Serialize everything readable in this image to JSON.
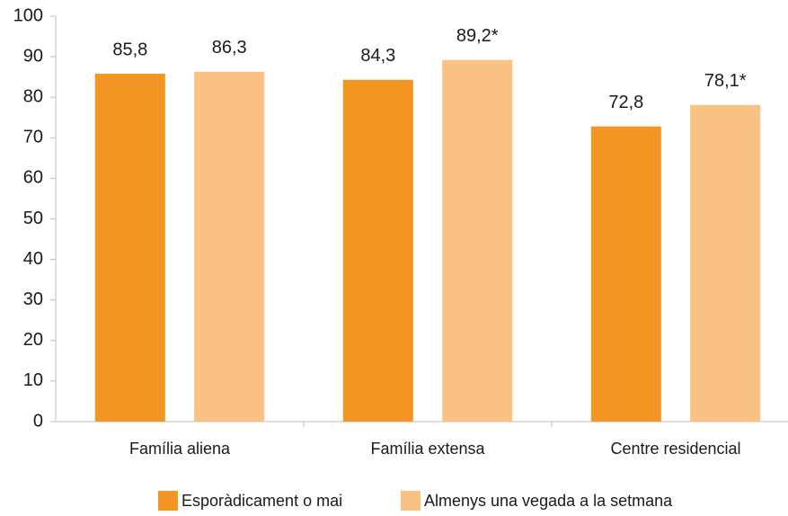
{
  "chart_data": {
    "type": "bar",
    "categories": [
      "Família aliena",
      "Família extensa",
      "Centre residencial"
    ],
    "series": [
      {
        "name": "Esporàdicament o mai",
        "color": "#f39423",
        "values": [
          85.8,
          84.3,
          72.8
        ],
        "value_labels": [
          "85,8",
          "84,3",
          "72,8"
        ]
      },
      {
        "name": "Almenys una vegada a la setmana",
        "color": "#f9c283",
        "values": [
          86.3,
          89.2,
          78.1
        ],
        "value_labels": [
          "86,3",
          "89,2*",
          "78,1*"
        ]
      }
    ],
    "ylim": [
      0,
      100
    ],
    "yticks": [
      0,
      10,
      20,
      30,
      40,
      50,
      60,
      70,
      80,
      90,
      100
    ],
    "grid": false,
    "legend": "bottom"
  }
}
